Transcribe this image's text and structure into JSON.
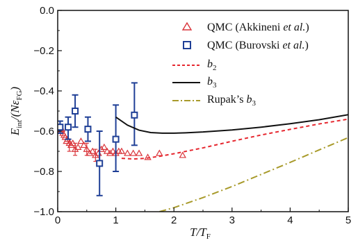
{
  "chart_data": {
    "type": "scatter",
    "xlim": [
      0,
      5
    ],
    "ylim": [
      -1.0,
      0.0
    ],
    "xticks": [
      0,
      1,
      2,
      3,
      4,
      5
    ],
    "yticks": [
      0.0,
      -0.2,
      -0.4,
      -0.6,
      -0.8,
      -1.0
    ],
    "xtick_labels": [
      "0",
      "1",
      "2",
      "3",
      "4",
      "5"
    ],
    "ytick_labels": [
      "0.0",
      "−0.2",
      "−0.4",
      "−0.6",
      "−0.8",
      "−1.0"
    ],
    "xlabel": {
      "main": "T/T",
      "sub": "F"
    },
    "ylabel": {
      "main": "E",
      "sub1": "int",
      "mid": "/(Nε",
      "sub2": "FG",
      "end": ")"
    },
    "legend_position": "top-right",
    "grid": false,
    "series": [
      {
        "name": "QMC (Akkineni et al.)",
        "legend_main": "QMC (Akkineni ",
        "legend_italic": "et al.",
        "legend_end": ")",
        "kind": "markers",
        "marker": "triangle",
        "color": "#d9343a",
        "points": [
          {
            "x": 0.03,
            "y": -0.58
          },
          {
            "x": 0.05,
            "y": -0.6
          },
          {
            "x": 0.07,
            "y": -0.59
          },
          {
            "x": 0.09,
            "y": -0.61
          },
          {
            "x": 0.11,
            "y": -0.62
          },
          {
            "x": 0.13,
            "y": -0.63
          },
          {
            "x": 0.15,
            "y": -0.65
          },
          {
            "x": 0.17,
            "y": -0.64
          },
          {
            "x": 0.2,
            "y": -0.66
          },
          {
            "x": 0.23,
            "y": -0.67
          },
          {
            "x": 0.26,
            "y": -0.66
          },
          {
            "x": 0.3,
            "y": -0.69
          },
          {
            "x": 0.35,
            "y": -0.68
          },
          {
            "x": 0.4,
            "y": -0.65
          },
          {
            "x": 0.45,
            "y": -0.67
          },
          {
            "x": 0.5,
            "y": -0.69
          },
          {
            "x": 0.55,
            "y": -0.71
          },
          {
            "x": 0.6,
            "y": -0.7
          },
          {
            "x": 0.65,
            "y": -0.72
          },
          {
            "x": 0.7,
            "y": -0.71
          },
          {
            "x": 0.75,
            "y": -0.69
          },
          {
            "x": 0.8,
            "y": -0.68
          },
          {
            "x": 0.85,
            "y": -0.7
          },
          {
            "x": 0.9,
            "y": -0.71
          },
          {
            "x": 0.95,
            "y": -0.7
          },
          {
            "x": 1.0,
            "y": -0.71
          },
          {
            "x": 1.05,
            "y": -0.7
          },
          {
            "x": 1.1,
            "y": -0.7
          },
          {
            "x": 1.2,
            "y": -0.71
          },
          {
            "x": 1.3,
            "y": -0.71
          },
          {
            "x": 1.4,
            "y": -0.71
          },
          {
            "x": 1.55,
            "y": -0.73
          },
          {
            "x": 1.75,
            "y": -0.71
          },
          {
            "x": 2.15,
            "y": -0.72
          }
        ],
        "error_bars": [
          {
            "x": 0.2,
            "low": -0.7,
            "high": -0.64
          },
          {
            "x": 0.3,
            "low": -0.72,
            "high": -0.66
          },
          {
            "x": 0.5,
            "low": -0.72,
            "high": -0.66
          },
          {
            "x": 0.65,
            "low": -0.75,
            "high": -0.69
          }
        ]
      },
      {
        "name": "QMC (Burovski et al.)",
        "legend_main": "QMC (Burovski ",
        "legend_italic": "et al.",
        "legend_end": ")",
        "kind": "markers",
        "marker": "square",
        "color": "#1f3f96",
        "points": [
          {
            "x": 0.04,
            "y": -0.58,
            "low": -0.61,
            "high": -0.55
          },
          {
            "x": 0.18,
            "y": -0.58,
            "low": -0.64,
            "high": -0.53
          },
          {
            "x": 0.3,
            "y": -0.5,
            "low": -0.58,
            "high": -0.42
          },
          {
            "x": 0.52,
            "y": -0.59,
            "low": -0.65,
            "high": -0.53
          },
          {
            "x": 0.72,
            "y": -0.76,
            "low": -0.92,
            "high": -0.6
          },
          {
            "x": 1.0,
            "y": -0.64,
            "low": -0.8,
            "high": -0.47
          },
          {
            "x": 1.32,
            "y": -0.52,
            "low": -0.67,
            "high": -0.36
          }
        ]
      },
      {
        "name": "b2",
        "legend_main": "b",
        "legend_sub": "2",
        "kind": "line",
        "style": "dashed",
        "color": "#e6262e",
        "points": [
          {
            "x": 1.1,
            "y": -0.735
          },
          {
            "x": 1.3,
            "y": -0.738
          },
          {
            "x": 1.5,
            "y": -0.735
          },
          {
            "x": 1.75,
            "y": -0.725
          },
          {
            "x": 2.0,
            "y": -0.712
          },
          {
            "x": 2.5,
            "y": -0.683
          },
          {
            "x": 3.0,
            "y": -0.65
          },
          {
            "x": 3.5,
            "y": -0.619
          },
          {
            "x": 4.0,
            "y": -0.591
          },
          {
            "x": 4.5,
            "y": -0.564
          },
          {
            "x": 5.0,
            "y": -0.54
          }
        ]
      },
      {
        "name": "b3",
        "legend_main": "b",
        "legend_sub": "3",
        "kind": "line",
        "style": "solid",
        "color": "#111111",
        "points": [
          {
            "x": 1.0,
            "y": -0.53
          },
          {
            "x": 1.2,
            "y": -0.57
          },
          {
            "x": 1.4,
            "y": -0.595
          },
          {
            "x": 1.6,
            "y": -0.607
          },
          {
            "x": 1.8,
            "y": -0.61
          },
          {
            "x": 2.0,
            "y": -0.61
          },
          {
            "x": 2.2,
            "y": -0.608
          },
          {
            "x": 2.5,
            "y": -0.604
          },
          {
            "x": 3.0,
            "y": -0.594
          },
          {
            "x": 3.5,
            "y": -0.58
          },
          {
            "x": 4.0,
            "y": -0.563
          },
          {
            "x": 4.5,
            "y": -0.543
          },
          {
            "x": 5.0,
            "y": -0.518
          }
        ]
      },
      {
        "name": "Rupak's b3",
        "legend_main": "Rupak’s ",
        "legend_italic": "b",
        "legend_sub": "3",
        "kind": "line",
        "style": "dash-dot",
        "color": "#a89a2a",
        "points": [
          {
            "x": 1.75,
            "y": -1.0
          },
          {
            "x": 2.0,
            "y": -0.98
          },
          {
            "x": 2.5,
            "y": -0.93
          },
          {
            "x": 3.0,
            "y": -0.875
          },
          {
            "x": 3.5,
            "y": -0.815
          },
          {
            "x": 4.0,
            "y": -0.755
          },
          {
            "x": 4.5,
            "y": -0.693
          },
          {
            "x": 5.0,
            "y": -0.632
          }
        ]
      }
    ]
  }
}
